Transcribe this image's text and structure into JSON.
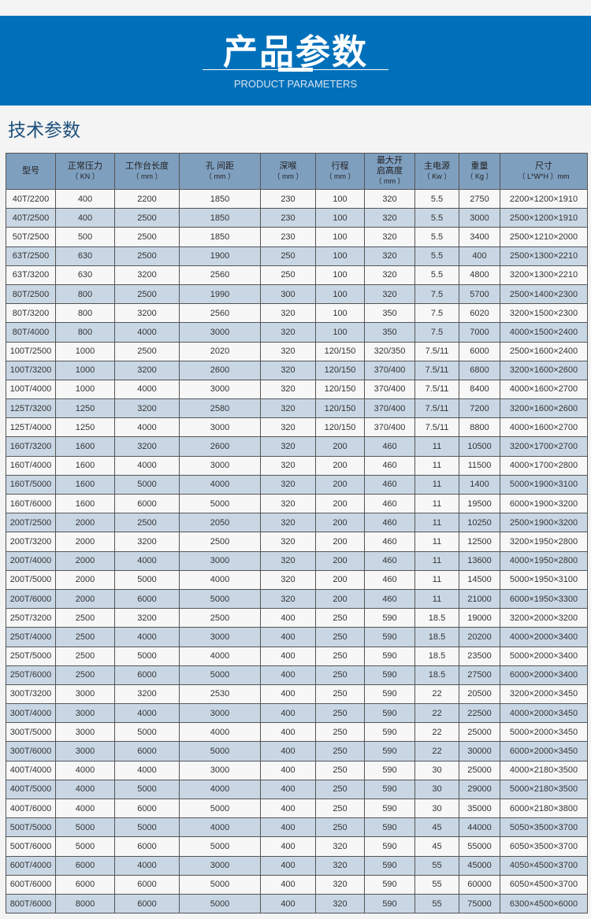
{
  "banner": {
    "title": "产品参数",
    "subtitle": "PRODUCT PARAMETERS"
  },
  "section_title": "技术参数",
  "colors": {
    "banner": "#0070ba",
    "header_row": "#7f9fbf",
    "alt_row": "#c9d7e5"
  },
  "table": {
    "headers": [
      {
        "label": "型号",
        "unit": ""
      },
      {
        "label": "正常压力",
        "unit": "（ KN ）"
      },
      {
        "label": "工作台长度",
        "unit": "（ mm ）"
      },
      {
        "label": "孔  间距",
        "unit": "（ mm ）"
      },
      {
        "label": "深喉",
        "unit": "（ mm ）"
      },
      {
        "label": "行程",
        "unit": "（ mm ）"
      },
      {
        "label": "最大开启高度",
        "unit": "（ mm ）"
      },
      {
        "label": "主电源",
        "unit": "（ Kw ）"
      },
      {
        "label": "重量",
        "unit": "（ Kg ）"
      },
      {
        "label": "尺寸",
        "unit": "（ L*W*H ）mm"
      }
    ],
    "rows": [
      [
        "40T/2200",
        "400",
        "2200",
        "1850",
        "230",
        "100",
        "320",
        "5.5",
        "2750",
        "2200×1200×1910"
      ],
      [
        "40T/2500",
        "400",
        "2500",
        "1850",
        "230",
        "100",
        "320",
        "5.5",
        "3000",
        "2500×1200×1910"
      ],
      [
        "50T/2500",
        "500",
        "2500",
        "1850",
        "230",
        "100",
        "320",
        "5.5",
        "3400",
        "2500×1210×2000"
      ],
      [
        "63T/2500",
        "630",
        "2500",
        "1900",
        "250",
        "100",
        "320",
        "5.5",
        "400",
        "2500×1300×2210"
      ],
      [
        "63T/3200",
        "630",
        "3200",
        "2560",
        "250",
        "100",
        "320",
        "5.5",
        "4800",
        "3200×1300×2210"
      ],
      [
        "80T/2500",
        "800",
        "2500",
        "1990",
        "300",
        "100",
        "320",
        "7.5",
        "5700",
        "2500×1400×2300"
      ],
      [
        "80T/3200",
        "800",
        "3200",
        "2560",
        "320",
        "100",
        "350",
        "7.5",
        "6020",
        "3200×1500×2300"
      ],
      [
        "80T/4000",
        "800",
        "4000",
        "3000",
        "320",
        "100",
        "350",
        "7.5",
        "7000",
        "4000×1500×2400"
      ],
      [
        "100T/2500",
        "1000",
        "2500",
        "2020",
        "320",
        "120/150",
        "320/350",
        "7.5/11",
        "6000",
        "2500×1600×2400"
      ],
      [
        "100T/3200",
        "1000",
        "3200",
        "2600",
        "320",
        "120/150",
        "370/400",
        "7.5/11",
        "6800",
        "3200×1600×2600"
      ],
      [
        "100T/4000",
        "1000",
        "4000",
        "3000",
        "320",
        "120/150",
        "370/400",
        "7.5/11",
        "8400",
        "4000×1600×2700"
      ],
      [
        "125T/3200",
        "1250",
        "3200",
        "2580",
        "320",
        "120/150",
        "370/400",
        "7.5/11",
        "7200",
        "3200×1600×2600"
      ],
      [
        "125T/4000",
        "1250",
        "4000",
        "3000",
        "320",
        "120/150",
        "370/400",
        "7.5/11",
        "8800",
        "4000×1600×2700"
      ],
      [
        "160T/3200",
        "1600",
        "3200",
        "2600",
        "320",
        "200",
        "460",
        "11",
        "10500",
        "3200×1700×2700"
      ],
      [
        "160T/4000",
        "1600",
        "4000",
        "3000",
        "320",
        "200",
        "460",
        "11",
        "11500",
        "4000×1700×2800"
      ],
      [
        "160T/5000",
        "1600",
        "5000",
        "4000",
        "320",
        "200",
        "460",
        "11",
        "1400",
        "5000×1900×3100"
      ],
      [
        "160T/6000",
        "1600",
        "6000",
        "5000",
        "320",
        "200",
        "460",
        "11",
        "19500",
        "6000×1900×3200"
      ],
      [
        "200T/2500",
        "2000",
        "2500",
        "2050",
        "320",
        "200",
        "460",
        "11",
        "10250",
        "2500×1900×3200"
      ],
      [
        "200T/3200",
        "2000",
        "3200",
        "2500",
        "320",
        "200",
        "460",
        "11",
        "12500",
        "3200×1950×2800"
      ],
      [
        "200T/4000",
        "2000",
        "4000",
        "3000",
        "320",
        "200",
        "460",
        "11",
        "13600",
        "4000×1950×2800"
      ],
      [
        "200T/5000",
        "2000",
        "5000",
        "4000",
        "320",
        "200",
        "460",
        "11",
        "14500",
        "5000×1950×3100"
      ],
      [
        "200T/6000",
        "2000",
        "6000",
        "5000",
        "320",
        "200",
        "460",
        "11",
        "21000",
        "6000×1950×3300"
      ],
      [
        "250T/3200",
        "2500",
        "3200",
        "2500",
        "400",
        "250",
        "590",
        "18.5",
        "19000",
        "3200×2000×3200"
      ],
      [
        "250T/4000",
        "2500",
        "4000",
        "3000",
        "400",
        "250",
        "590",
        "18.5",
        "20200",
        "4000×2000×3400"
      ],
      [
        "250T/5000",
        "2500",
        "5000",
        "4000",
        "400",
        "250",
        "590",
        "18.5",
        "23500",
        "5000×2000×3400"
      ],
      [
        "250T/6000",
        "2500",
        "6000",
        "5000",
        "400",
        "250",
        "590",
        "18.5",
        "27500",
        "6000×2000×3400"
      ],
      [
        "300T/3200",
        "3000",
        "3200",
        "2530",
        "400",
        "250",
        "590",
        "22",
        "20500",
        "3200×2000×3450"
      ],
      [
        "300T/4000",
        "3000",
        "4000",
        "3000",
        "400",
        "250",
        "590",
        "22",
        "22500",
        "4000×2000×3450"
      ],
      [
        "300T/5000",
        "3000",
        "5000",
        "4000",
        "400",
        "250",
        "590",
        "22",
        "25000",
        "5000×2000×3450"
      ],
      [
        "300T/6000",
        "3000",
        "6000",
        "5000",
        "400",
        "250",
        "590",
        "22",
        "30000",
        "6000×2000×3450"
      ],
      [
        "400T/4000",
        "4000",
        "4000",
        "3000",
        "400",
        "250",
        "590",
        "30",
        "25000",
        "4000×2180×3500"
      ],
      [
        "400T/5000",
        "4000",
        "5000",
        "4000",
        "400",
        "250",
        "590",
        "30",
        "29000",
        "5000×2180×3500"
      ],
      [
        "400T/6000",
        "4000",
        "6000",
        "5000",
        "400",
        "250",
        "590",
        "30",
        "35000",
        "6000×2180×3800"
      ],
      [
        "500T/5000",
        "5000",
        "5000",
        "4000",
        "400",
        "250",
        "590",
        "45",
        "44000",
        "5050×3500×3700"
      ],
      [
        "500T/6000",
        "5000",
        "6000",
        "5000",
        "400",
        "320",
        "590",
        "45",
        "55000",
        "6050×3500×3700"
      ],
      [
        "600T/4000",
        "6000",
        "4000",
        "3000",
        "400",
        "320",
        "590",
        "55",
        "45000",
        "4050×4500×3700"
      ],
      [
        "600T/6000",
        "6000",
        "6000",
        "5000",
        "400",
        "320",
        "590",
        "55",
        "60000",
        "6050×4500×3700"
      ],
      [
        "800T/6000",
        "8000",
        "6000",
        "5000",
        "400",
        "320",
        "590",
        "55",
        "75000",
        "6300×4500×6000"
      ]
    ]
  }
}
